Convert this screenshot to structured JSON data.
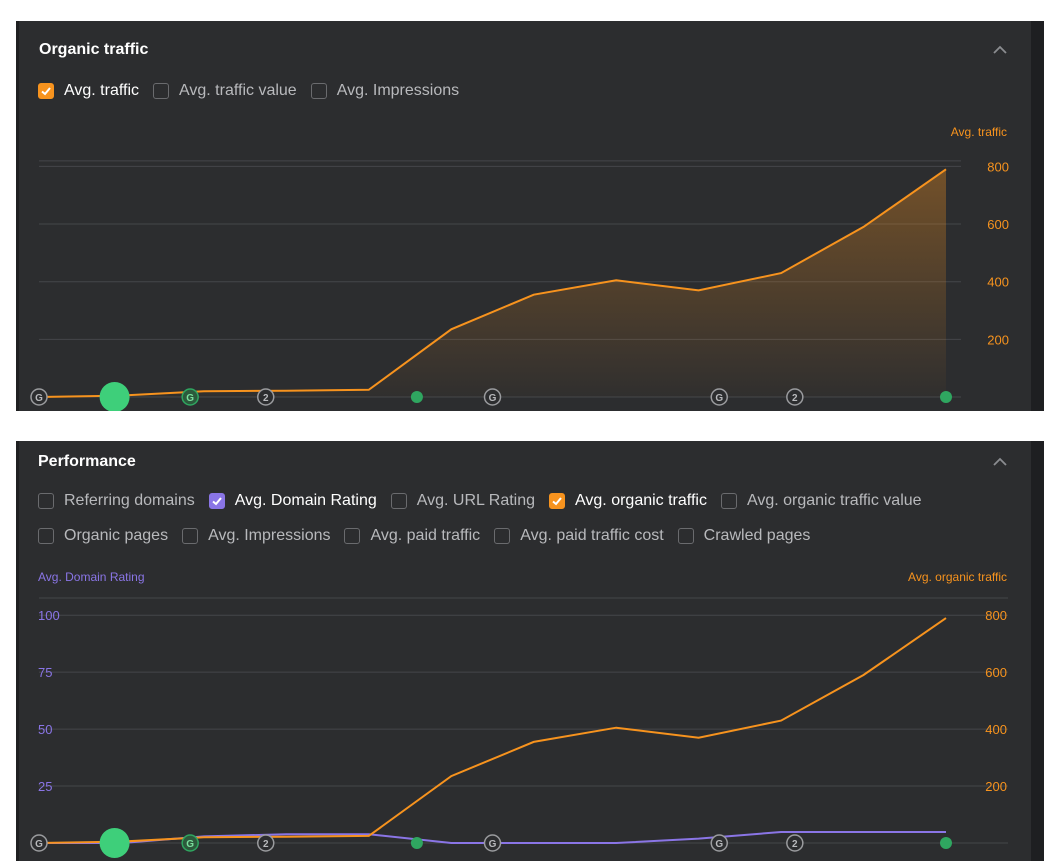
{
  "organic_traffic": {
    "title": "Organic traffic",
    "checkboxes": [
      {
        "label": "Avg. traffic",
        "checked": true
      },
      {
        "label": "Avg. traffic value",
        "checked": false
      },
      {
        "label": "Avg. Impressions",
        "checked": false
      }
    ],
    "right_axis_title": "Avg. traffic"
  },
  "performance": {
    "title": "Performance",
    "checkboxes_row1": [
      {
        "label": "Referring domains",
        "checked": false
      },
      {
        "label": "Avg. Domain Rating",
        "checked": true,
        "color": "#8a75e6"
      },
      {
        "label": "Avg. URL Rating",
        "checked": false
      },
      {
        "label": "Avg. organic traffic",
        "checked": true,
        "color": "#f7931e"
      },
      {
        "label": "Avg. organic traffic value",
        "checked": false
      }
    ],
    "checkboxes_row2": [
      {
        "label": "Organic pages",
        "checked": false
      },
      {
        "label": "Avg. Impressions",
        "checked": false
      },
      {
        "label": "Avg. paid traffic",
        "checked": false
      },
      {
        "label": "Avg. paid traffic cost",
        "checked": false
      },
      {
        "label": "Crawled pages",
        "checked": false
      }
    ],
    "left_axis_title": "Avg. Domain Rating",
    "right_axis_title": "Avg. organic traffic"
  },
  "colors": {
    "orange": "#f7931e",
    "purple": "#8a75e6",
    "green": "#2fa660",
    "bright_green": "#3ecf7a",
    "grid": "#44464a",
    "panel_bg": "#2c2d2f"
  },
  "chart_data": [
    {
      "type": "area",
      "title": "Organic traffic",
      "series": [
        {
          "name": "Avg. traffic",
          "color": "#f7931e",
          "values": [
            0,
            5,
            20,
            22,
            25,
            235,
            355,
            405,
            370,
            430,
            590,
            790
          ]
        }
      ],
      "y_right": {
        "title": "Avg. traffic",
        "ticks": [
          200,
          400,
          600,
          800
        ],
        "ylim": [
          0,
          850
        ]
      },
      "annotations": [
        {
          "index": 0,
          "icon": "G"
        },
        {
          "index": 1,
          "icon": "dot-big"
        },
        {
          "index": 2,
          "icon": "G-green"
        },
        {
          "index": 3,
          "icon": "2"
        },
        {
          "index": 5,
          "icon": "dot"
        },
        {
          "index": 6,
          "icon": "G"
        },
        {
          "index": 9,
          "icon": "G"
        },
        {
          "index": 10,
          "icon": "2"
        },
        {
          "index": 12,
          "icon": "dot"
        }
      ],
      "grid": true
    },
    {
      "type": "line",
      "title": "Performance",
      "series": [
        {
          "name": "Avg. Domain Rating",
          "axis": "left",
          "color": "#8a75e6",
          "values": [
            0,
            0,
            3,
            4,
            4,
            0,
            0,
            0,
            2,
            5,
            5,
            5
          ]
        },
        {
          "name": "Avg. organic traffic",
          "axis": "right",
          "color": "#f7931e",
          "values": [
            0,
            5,
            20,
            22,
            25,
            235,
            355,
            405,
            370,
            430,
            590,
            790
          ]
        }
      ],
      "y_left": {
        "title": "Avg. Domain Rating",
        "ticks": [
          25,
          50,
          75,
          100
        ],
        "ylim": [
          0,
          110
        ]
      },
      "y_right": {
        "title": "Avg. organic traffic",
        "ticks": [
          200,
          400,
          600,
          800
        ],
        "ylim": [
          0,
          850
        ]
      },
      "annotations": [
        {
          "index": 0,
          "icon": "G"
        },
        {
          "index": 1,
          "icon": "dot-big"
        },
        {
          "index": 2,
          "icon": "G-green"
        },
        {
          "index": 3,
          "icon": "2"
        },
        {
          "index": 5,
          "icon": "dot"
        },
        {
          "index": 6,
          "icon": "G"
        },
        {
          "index": 9,
          "icon": "G"
        },
        {
          "index": 10,
          "icon": "2"
        },
        {
          "index": 12,
          "icon": "dot"
        }
      ],
      "grid": true
    }
  ]
}
